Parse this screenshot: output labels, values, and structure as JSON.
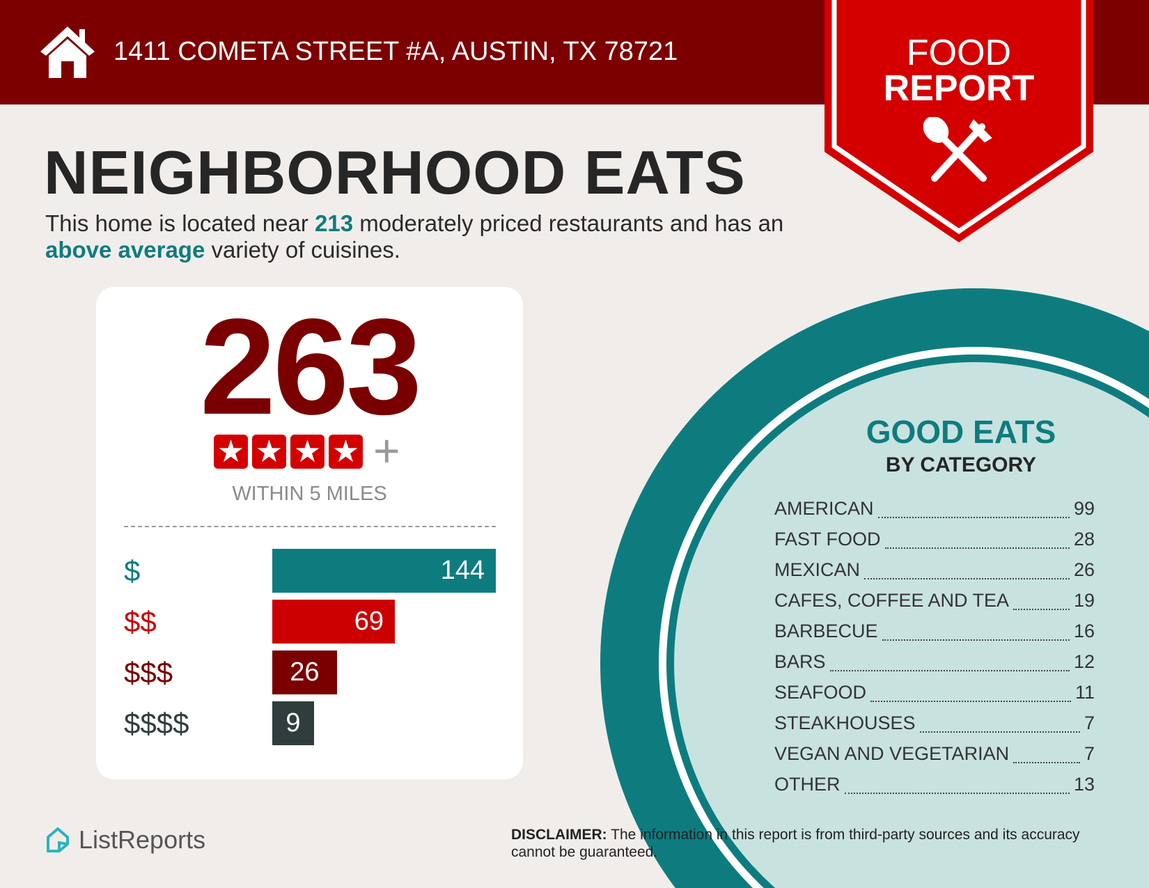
{
  "header": {
    "address": "1411 COMETA STREET #A, AUSTIN, TX 78721",
    "icon": "house-icon"
  },
  "ribbon": {
    "line1": "FOOD",
    "line2": "REPORT",
    "icon": "spoon-fork-icon"
  },
  "title": "NEIGHBORHOOD EATS",
  "intro": {
    "p1": "This home is located near ",
    "count": "213",
    "p2": " moderately priced restaurants and has an ",
    "variety": "above average",
    "p3": " variety of cuisines."
  },
  "summary": {
    "total": "263",
    "stars": 4,
    "plus": "+",
    "within": "WITHIN 5 MILES"
  },
  "price_tiers": [
    {
      "label": "$",
      "value": 144,
      "color": "#0e7c7f"
    },
    {
      "label": "$$",
      "value": 69,
      "color": "#cc0000"
    },
    {
      "label": "$$$",
      "value": 26,
      "color": "#7a0000"
    },
    {
      "label": "$$$$",
      "value": 9,
      "color": "#2f3d3d"
    }
  ],
  "good_eats": {
    "title": "GOOD EATS",
    "subtitle": "BY CATEGORY",
    "categories": [
      {
        "name": "AMERICAN",
        "count": "99"
      },
      {
        "name": "FAST FOOD",
        "count": "28"
      },
      {
        "name": "MEXICAN",
        "count": "26"
      },
      {
        "name": "CAFES, COFFEE AND TEA",
        "count": "19"
      },
      {
        "name": "BARBECUE",
        "count": "16"
      },
      {
        "name": "BARS",
        "count": "12"
      },
      {
        "name": "SEAFOOD",
        "count": "11"
      },
      {
        "name": "STEAKHOUSES",
        "count": "7"
      },
      {
        "name": "VEGAN AND VEGETARIAN",
        "count": "7"
      },
      {
        "name": "OTHER",
        "count": "13"
      }
    ]
  },
  "footer": {
    "logo": "ListReports",
    "disclaimer_label": "DISCLAIMER:",
    "disclaimer": " The information in this report is from third-party sources and its accuracy cannot be guaranteed."
  },
  "colors": {
    "header": "#7d0000",
    "ribbon": "#d40000",
    "teal": "#0e7c7f",
    "light_teal": "#c8e2df",
    "background": "#f1edea"
  }
}
